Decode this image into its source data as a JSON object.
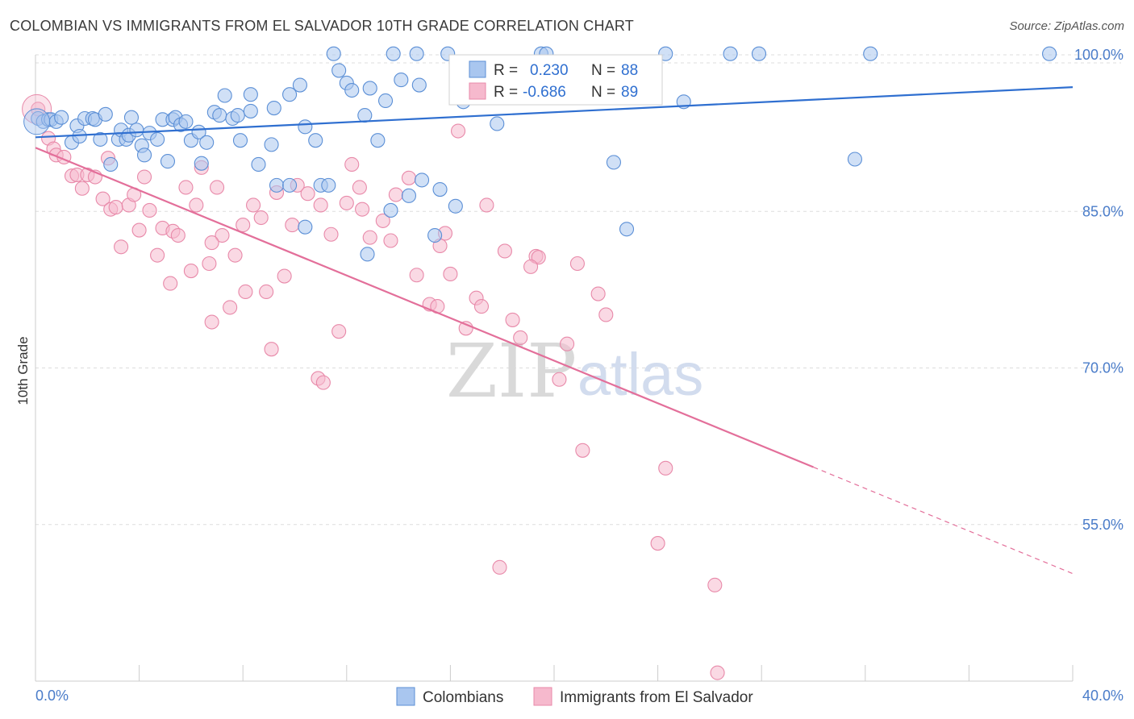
{
  "title": "COLOMBIAN VS IMMIGRANTS FROM EL SALVADOR 10TH GRADE CORRELATION CHART",
  "source": "Source: ZipAtlas.com",
  "watermark": {
    "zip": "ZIP",
    "atlas": "atlas"
  },
  "colors": {
    "blue_fill": "#a9c6ef",
    "blue_stroke": "#5b8fd6",
    "blue_line": "#2f6fd0",
    "pink_fill": "#f6b9cd",
    "pink_stroke": "#e889a9",
    "pink_line": "#e36f9a",
    "tick_text": "#4a7cc9",
    "grid": "#dddddd"
  },
  "chart_data": {
    "type": "scatter",
    "title": "COLOMBIAN VS IMMIGRANTS FROM EL SALVADOR 10TH GRADE CORRELATION CHART",
    "xlabel": "",
    "ylabel": "10th Grade",
    "xlim": [
      0.0,
      40.0
    ],
    "ylim": [
      40.0,
      100.0
    ],
    "x_tick_labels": [
      "0.0%",
      "40.0%"
    ],
    "y_ticks": [
      55.0,
      70.0,
      85.0,
      100.0
    ],
    "y_tick_labels": [
      "55.0%",
      "70.0%",
      "85.0%",
      "100.0%"
    ],
    "legend_stats": [
      {
        "r_label": "R =",
        "r_value": "0.230",
        "n_label": "N =",
        "n_value": "88"
      },
      {
        "r_label": "R =",
        "r_value": "-0.686",
        "n_label": "N =",
        "n_value": "89"
      }
    ],
    "series": [
      {
        "name": "Colombians",
        "color": "#a9c6ef",
        "trend": {
          "x0": 0.0,
          "y0": 92.1,
          "x1": 40.0,
          "y1": 96.9
        },
        "points": [
          [
            0.1,
            93.9
          ],
          [
            0.3,
            93.6
          ],
          [
            0.5,
            93.8
          ],
          [
            0.6,
            93.8
          ],
          [
            0.8,
            93.6
          ],
          [
            1.0,
            94.0
          ],
          [
            1.4,
            91.6
          ],
          [
            1.6,
            93.2
          ],
          [
            1.7,
            92.2
          ],
          [
            1.9,
            93.9
          ],
          [
            2.2,
            93.9
          ],
          [
            2.3,
            93.8
          ],
          [
            2.5,
            91.9
          ],
          [
            2.7,
            94.3
          ],
          [
            2.9,
            89.5
          ],
          [
            3.2,
            91.9
          ],
          [
            3.3,
            92.8
          ],
          [
            3.5,
            91.9
          ],
          [
            3.6,
            92.3
          ],
          [
            3.7,
            94.0
          ],
          [
            3.9,
            92.8
          ],
          [
            4.1,
            91.3
          ],
          [
            4.2,
            90.4
          ],
          [
            4.4,
            92.5
          ],
          [
            4.7,
            91.9
          ],
          [
            4.9,
            93.8
          ],
          [
            5.1,
            89.8
          ],
          [
            5.3,
            93.8
          ],
          [
            5.4,
            94.0
          ],
          [
            5.6,
            93.3
          ],
          [
            5.8,
            93.6
          ],
          [
            6.0,
            91.8
          ],
          [
            6.3,
            92.6
          ],
          [
            6.4,
            89.6
          ],
          [
            6.6,
            91.6
          ],
          [
            6.9,
            94.5
          ],
          [
            7.1,
            94.2
          ],
          [
            7.3,
            96.1
          ],
          [
            7.6,
            93.9
          ],
          [
            7.8,
            94.2
          ],
          [
            7.9,
            91.8
          ],
          [
            8.3,
            94.6
          ],
          [
            8.3,
            96.2
          ],
          [
            8.6,
            89.5
          ],
          [
            9.1,
            91.4
          ],
          [
            9.2,
            94.9
          ],
          [
            9.3,
            87.5
          ],
          [
            9.8,
            96.2
          ],
          [
            9.8,
            87.5
          ],
          [
            10.2,
            97.1
          ],
          [
            10.4,
            93.1
          ],
          [
            10.8,
            91.8
          ],
          [
            10.4,
            83.5
          ],
          [
            11.0,
            87.5
          ],
          [
            11.3,
            87.5
          ],
          [
            11.5,
            100.1
          ],
          [
            11.7,
            98.5
          ],
          [
            12.0,
            97.3
          ],
          [
            12.2,
            96.6
          ],
          [
            12.7,
            94.2
          ],
          [
            12.8,
            80.9
          ],
          [
            12.9,
            96.8
          ],
          [
            13.2,
            91.8
          ],
          [
            13.5,
            95.6
          ],
          [
            13.7,
            85.1
          ],
          [
            13.8,
            100.1
          ],
          [
            14.1,
            97.6
          ],
          [
            14.4,
            86.5
          ],
          [
            14.7,
            100.1
          ],
          [
            14.8,
            97.1
          ],
          [
            14.9,
            88.0
          ],
          [
            15.4,
            82.7
          ],
          [
            15.6,
            87.1
          ],
          [
            15.9,
            100.1
          ],
          [
            16.2,
            85.5
          ],
          [
            16.5,
            95.5
          ],
          [
            17.8,
            93.4
          ],
          [
            19.5,
            100.1
          ],
          [
            19.7,
            100.1
          ],
          [
            22.3,
            89.7
          ],
          [
            22.8,
            83.3
          ],
          [
            24.3,
            100.1
          ],
          [
            25.0,
            95.5
          ],
          [
            26.8,
            100.1
          ],
          [
            27.9,
            100.1
          ],
          [
            31.6,
            90.0
          ],
          [
            32.2,
            100.1
          ],
          [
            39.1,
            100.1
          ]
        ]
      },
      {
        "name": "Immigrants from El Salvador",
        "color": "#f6b9cd",
        "trend": {
          "x0": 0.0,
          "y0": 91.1,
          "x1": 30.0,
          "y1": 60.5,
          "dash_x1": 40.0,
          "dash_y1": 50.3
        },
        "points": [
          [
            0.1,
            94.8
          ],
          [
            0.5,
            92.0
          ],
          [
            0.7,
            91.0
          ],
          [
            0.8,
            90.4
          ],
          [
            1.1,
            90.2
          ],
          [
            1.4,
            88.4
          ],
          [
            1.6,
            88.5
          ],
          [
            1.8,
            87.2
          ],
          [
            2.0,
            88.5
          ],
          [
            2.3,
            88.3
          ],
          [
            2.6,
            86.2
          ],
          [
            2.8,
            90.1
          ],
          [
            2.9,
            85.2
          ],
          [
            3.1,
            85.4
          ],
          [
            3.3,
            81.6
          ],
          [
            3.6,
            85.6
          ],
          [
            3.8,
            86.6
          ],
          [
            4.0,
            83.2
          ],
          [
            4.2,
            88.3
          ],
          [
            4.4,
            85.1
          ],
          [
            4.7,
            80.8
          ],
          [
            4.9,
            83.4
          ],
          [
            5.2,
            78.1
          ],
          [
            5.3,
            83.1
          ],
          [
            5.5,
            82.7
          ],
          [
            5.8,
            87.3
          ],
          [
            6.0,
            79.3
          ],
          [
            6.2,
            85.6
          ],
          [
            6.4,
            89.2
          ],
          [
            6.7,
            80.0
          ],
          [
            6.8,
            74.4
          ],
          [
            7.0,
            87.3
          ],
          [
            7.2,
            82.7
          ],
          [
            7.5,
            75.8
          ],
          [
            7.7,
            80.8
          ],
          [
            8.0,
            83.7
          ],
          [
            8.1,
            77.3
          ],
          [
            8.4,
            85.6
          ],
          [
            8.7,
            84.4
          ],
          [
            8.9,
            77.3
          ],
          [
            9.1,
            71.8
          ],
          [
            9.3,
            86.8
          ],
          [
            9.6,
            78.8
          ],
          [
            9.9,
            83.7
          ],
          [
            10.1,
            87.5
          ],
          [
            10.5,
            86.7
          ],
          [
            10.9,
            69.0
          ],
          [
            11.1,
            68.6
          ],
          [
            11.4,
            82.8
          ],
          [
            11.7,
            73.5
          ],
          [
            12.0,
            85.8
          ],
          [
            12.2,
            89.5
          ],
          [
            12.5,
            87.3
          ],
          [
            12.6,
            85.2
          ],
          [
            12.9,
            82.5
          ],
          [
            13.4,
            84.1
          ],
          [
            13.7,
            82.2
          ],
          [
            13.9,
            86.6
          ],
          [
            14.4,
            88.2
          ],
          [
            14.7,
            78.9
          ],
          [
            15.2,
            76.1
          ],
          [
            15.5,
            75.9
          ],
          [
            15.6,
            81.7
          ],
          [
            15.8,
            82.9
          ],
          [
            16.3,
            92.7
          ],
          [
            16.6,
            73.8
          ],
          [
            17.0,
            76.7
          ],
          [
            17.2,
            75.9
          ],
          [
            17.4,
            85.6
          ],
          [
            17.9,
            50.9
          ],
          [
            18.1,
            81.2
          ],
          [
            18.4,
            74.6
          ],
          [
            18.7,
            72.9
          ],
          [
            19.3,
            80.7
          ],
          [
            19.4,
            80.6
          ],
          [
            20.2,
            68.9
          ],
          [
            20.5,
            72.3
          ],
          [
            20.9,
            80.0
          ],
          [
            21.1,
            62.1
          ],
          [
            21.7,
            77.1
          ],
          [
            24.0,
            53.2
          ],
          [
            24.3,
            60.4
          ],
          [
            26.2,
            49.2
          ],
          [
            26.3,
            40.8
          ],
          [
            16.0,
            79.0
          ],
          [
            11.0,
            85.6
          ],
          [
            6.8,
            82.0
          ],
          [
            19.1,
            79.7
          ],
          [
            22.0,
            75.1
          ]
        ]
      }
    ],
    "legend": [
      "Colombians",
      "Immigrants from El Salvador"
    ]
  }
}
